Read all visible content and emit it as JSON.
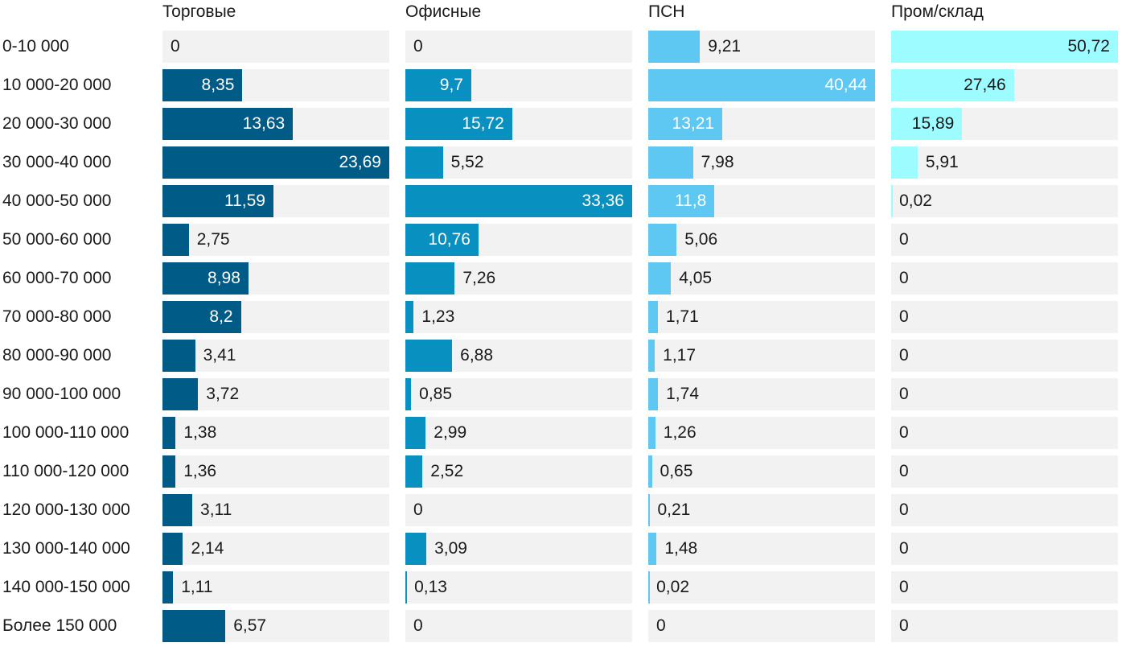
{
  "chart_data": {
    "type": "bar",
    "orientation": "horizontal",
    "layout": "small-multiples",
    "categories": [
      "0-10 000",
      "10 000-20 000",
      "20 000-30 000",
      "30 000-40 000",
      "40 000-50 000",
      "50 000-60 000",
      "60 000-70 000",
      "70 000-80 000",
      "80 000-90 000",
      "90 000-100 000",
      "100 000-110 000",
      "110 000-120 000",
      "120 000-130 000",
      "130 000-140 000",
      "140 000-150 000",
      "Более 150 000"
    ],
    "series": [
      {
        "name": "Торговые",
        "color": "#005b86",
        "values": [
          0,
          8.35,
          13.63,
          23.69,
          11.59,
          2.75,
          8.98,
          8.2,
          3.41,
          3.72,
          1.38,
          1.36,
          3.11,
          2.14,
          1.11,
          6.57
        ],
        "labels": [
          "0",
          "8,35",
          "13,63",
          "23,69",
          "11,59",
          "2,75",
          "8,98",
          "8,2",
          "3,41",
          "3,72",
          "1,38",
          "1,36",
          "3,11",
          "2,14",
          "1,11",
          "6,57"
        ]
      },
      {
        "name": "Офисные",
        "color": "#0790c0",
        "values": [
          0,
          9.7,
          15.72,
          5.52,
          33.36,
          10.76,
          7.26,
          1.23,
          6.88,
          0.85,
          2.99,
          2.52,
          0,
          3.09,
          0.13,
          0
        ],
        "labels": [
          "0",
          "9,7",
          "15,72",
          "5,52",
          "33,36",
          "10,76",
          "7,26",
          "1,23",
          "6,88",
          "0,85",
          "2,99",
          "2,52",
          "0",
          "3,09",
          "0,13",
          "0"
        ]
      },
      {
        "name": "ПСН",
        "color": "#5ec8f2",
        "values": [
          9.21,
          40.44,
          13.21,
          7.98,
          11.8,
          5.06,
          4.05,
          1.71,
          1.17,
          1.74,
          1.26,
          0.65,
          0.21,
          1.48,
          0.02,
          0
        ],
        "labels": [
          "9,21",
          "40,44",
          "13,21",
          "7,98",
          "11,8",
          "5,06",
          "4,05",
          "1,71",
          "1,17",
          "1,74",
          "1,26",
          "0,65",
          "0,21",
          "1,48",
          "0,02",
          "0"
        ]
      },
      {
        "name": "Пром/склад",
        "color": "#9cfcff",
        "values": [
          50.72,
          27.46,
          15.89,
          5.91,
          0.02,
          0,
          0,
          0,
          0,
          0,
          0,
          0,
          0,
          0,
          0,
          0
        ],
        "labels": [
          "50,72",
          "27,46",
          "15,89",
          "5,91",
          "0,02",
          "0",
          "0",
          "0",
          "0",
          "0",
          "0",
          "0",
          "0",
          "0",
          "0",
          "0"
        ]
      }
    ],
    "grid": false,
    "legend": "none"
  }
}
